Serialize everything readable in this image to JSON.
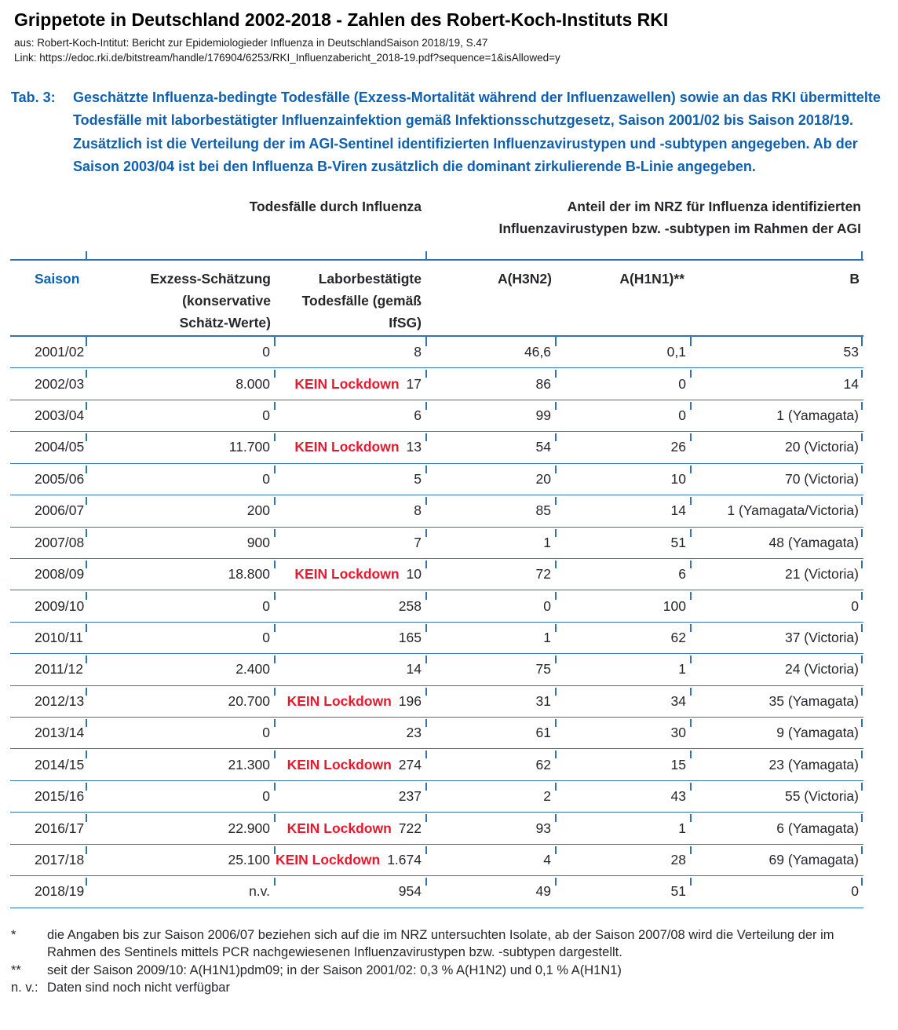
{
  "colors": {
    "blue": "#1060b0",
    "rule": "#3273b5",
    "red": "#e8192c",
    "text": "#26262b"
  },
  "header": {
    "title": "Grippetote in Deutschland 2002-2018 - Zahlen des Robert-Koch-Instituts RKI",
    "source": "aus: Robert-Koch-Intitut: Bericht zur Epidemiologieder Influenza in DeutschlandSaison 2018/19, S.47",
    "link": "Link: https://edoc.rki.de/bitstream/handle/176904/6253/RKI_Influenzabericht_2018-19.pdf?sequence=1&isAllowed=y"
  },
  "caption": {
    "label": "Tab. 3:",
    "text": "Geschätzte Influenza-bedingte Todesfälle (Exzess-Mortalität während der Influenzawellen) sowie an das RKI übermittelte Todesfälle mit laborbestätigter Influenzainfektion gemäß Infektionsschutzgesetz, Saison 2001/02 bis Saison 2018/19. Zusätzlich ist die Verteilung der im AGI-Sentinel identifizierten Influenzavirustypen und -subtypen angegeben. Ab der Saison 2003/04 ist bei den Influenza B-Viren zusätzlich die dominant zirkulierende B-Linie angegeben."
  },
  "table": {
    "group_headers": {
      "deaths": "Todesfälle durch Influenza",
      "nrz_lines": [
        "Anteil der im NRZ für Influenza identifizierten",
        "Influenzavirustypen bzw. -subtypen im Rahmen der AGI"
      ]
    },
    "columns": {
      "season": "Saison",
      "excess_lines": [
        "Exzess-Schätzung",
        "(konservative",
        "Schätz-Werte)"
      ],
      "lab_lines": [
        "Laborbestätigte",
        "Todesfälle (gemäß",
        "IfSG)"
      ],
      "h3n2": "A(H3N2)",
      "h1n1": "A(H1N1)**",
      "b": "B"
    },
    "annotation_label": "KEIN Lockdown",
    "rows": [
      {
        "season": "2001/02",
        "excess": "0",
        "lockdown": false,
        "lab": "8",
        "h3n2": "46,6",
        "h1n1": "0,1",
        "b": "53"
      },
      {
        "season": "2002/03",
        "excess": "8.000",
        "lockdown": true,
        "lab": "17",
        "h3n2": "86",
        "h1n1": "0",
        "b": "14"
      },
      {
        "season": "2003/04",
        "excess": "0",
        "lockdown": false,
        "lab": "6",
        "h3n2": "99",
        "h1n1": "0",
        "b": "1 (Yamagata)"
      },
      {
        "season": "2004/05",
        "excess": "11.700",
        "lockdown": true,
        "lab": "13",
        "h3n2": "54",
        "h1n1": "26",
        "b": "20 (Victoria)"
      },
      {
        "season": "2005/06",
        "excess": "0",
        "lockdown": false,
        "lab": "5",
        "h3n2": "20",
        "h1n1": "10",
        "b": "70 (Victoria)"
      },
      {
        "season": "2006/07",
        "excess": "200",
        "lockdown": false,
        "lab": "8",
        "h3n2": "85",
        "h1n1": "14",
        "b": "1 (Yamagata/Victoria)"
      },
      {
        "season": "2007/08",
        "excess": "900",
        "lockdown": false,
        "lab": "7",
        "h3n2": "1",
        "h1n1": "51",
        "b": "48 (Yamagata)"
      },
      {
        "season": "2008/09",
        "excess": "18.800",
        "lockdown": true,
        "lab": "10",
        "h3n2": "72",
        "h1n1": "6",
        "b": "21 (Victoria)"
      },
      {
        "season": "2009/10",
        "excess": "0",
        "lockdown": false,
        "lab": "258",
        "h3n2": "0",
        "h1n1": "100",
        "b": "0"
      },
      {
        "season": "2010/11",
        "excess": "0",
        "lockdown": false,
        "lab": "165",
        "h3n2": "1",
        "h1n1": "62",
        "b": "37 (Victoria)"
      },
      {
        "season": "2011/12",
        "excess": "2.400",
        "lockdown": false,
        "lab": "14",
        "h3n2": "75",
        "h1n1": "1",
        "b": "24 (Victoria)"
      },
      {
        "season": "2012/13",
        "excess": "20.700",
        "lockdown": true,
        "lab": "196",
        "h3n2": "31",
        "h1n1": "34",
        "b": "35 (Yamagata)"
      },
      {
        "season": "2013/14",
        "excess": "0",
        "lockdown": false,
        "lab": "23",
        "h3n2": "61",
        "h1n1": "30",
        "b": "9 (Yamagata)"
      },
      {
        "season": "2014/15",
        "excess": "21.300",
        "lockdown": true,
        "lab": "274",
        "h3n2": "62",
        "h1n1": "15",
        "b": "23 (Yamagata)"
      },
      {
        "season": "2015/16",
        "excess": "0",
        "lockdown": false,
        "lab": "237",
        "h3n2": "2",
        "h1n1": "43",
        "b": "55 (Victoria)"
      },
      {
        "season": "2016/17",
        "excess": "22.900",
        "lockdown": true,
        "lab": "722",
        "h3n2": "93",
        "h1n1": "1",
        "b": "6 (Yamagata)"
      },
      {
        "season": "2017/18",
        "excess": "25.100",
        "lockdown": true,
        "lab": "1.674",
        "h3n2": "4",
        "h1n1": "28",
        "b": "69 (Yamagata)"
      },
      {
        "season": "2018/19",
        "excess": "n.v.",
        "lockdown": false,
        "lab": "954",
        "h3n2": "49",
        "h1n1": "51",
        "b": "0"
      }
    ]
  },
  "footnotes": [
    {
      "label": "*",
      "text": "die Angaben bis zur Saison 2006/07 beziehen sich auf die im NRZ untersuchten Isolate, ab der Saison 2007/08 wird die Verteilung der im Rahmen des Sentinels mittels PCR nachgewiesenen Influenzavirustypen bzw. -subtypen dargestellt."
    },
    {
      "label": "**",
      "text": "seit der Saison 2009/10: A(H1N1)pdm09; in der Saison 2001/02: 0,3 % A(H1N2) und 0,1 % A(H1N1)"
    },
    {
      "label": "n. v.:",
      "text": "Daten sind noch nicht verfügbar"
    }
  ]
}
